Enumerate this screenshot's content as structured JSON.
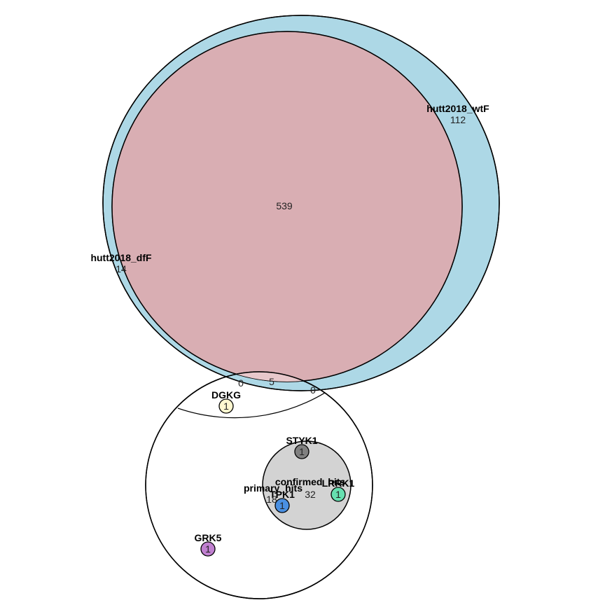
{
  "diagram": {
    "type": "euler",
    "sets": [
      {
        "name": "hutt2018_wtF",
        "count": "112",
        "color": "#add8e6"
      },
      {
        "name": "hutt2018_dfF",
        "count": "14",
        "color": "#f08080"
      },
      {
        "name": "primary_hits",
        "count": "18",
        "color": "#ffffff"
      },
      {
        "name": "confirmed_hits",
        "count": "32",
        "color": "#d3d3d3"
      }
    ],
    "intersections": {
      "wtF_dfF": "539",
      "wtF_dfF_primary": "5",
      "dfF_primary": "0",
      "wtF_primary": "0"
    },
    "genes": [
      {
        "name": "DGKG",
        "count": "1",
        "color": "#fff8d0"
      },
      {
        "name": "STYK1",
        "count": "1",
        "color": "#808080"
      },
      {
        "name": "LRRK1",
        "count": "1",
        "color": "#66e0b0"
      },
      {
        "name": "TPK1",
        "count": "1",
        "color": "#4a90e2"
      },
      {
        "name": "GRK5",
        "count": "1",
        "color": "#c080d0"
      }
    ]
  }
}
